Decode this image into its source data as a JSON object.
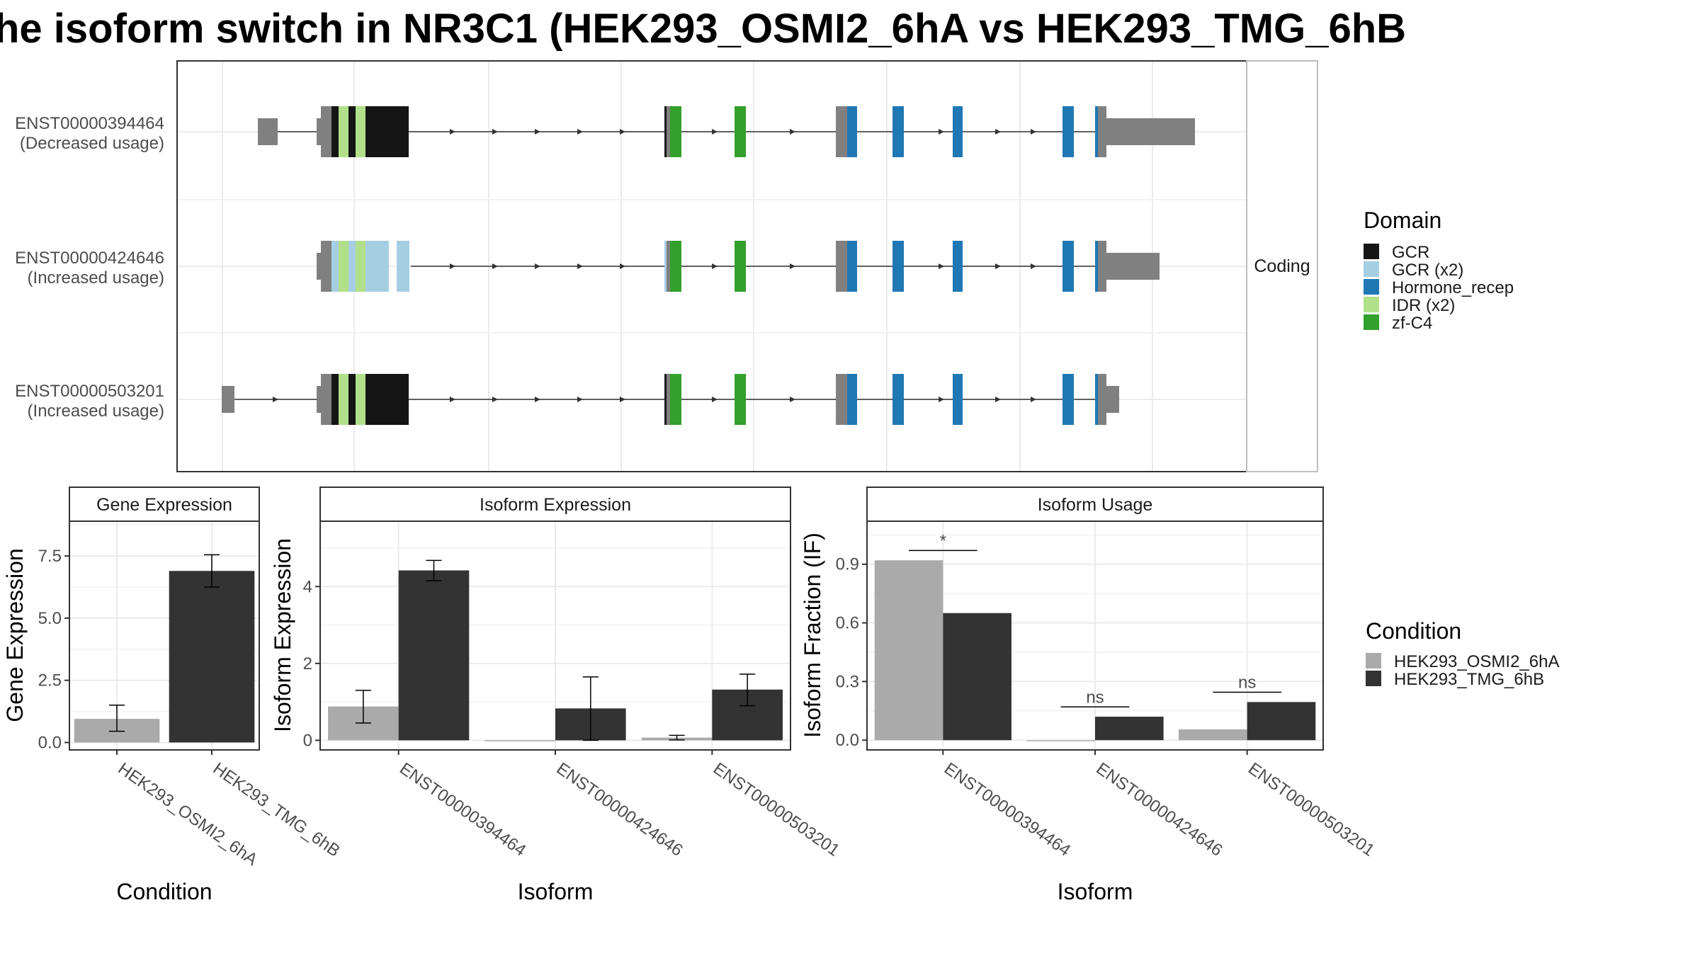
{
  "title": "he isoform switch in NR3C1 (HEK293_OSMI2_6hA vs HEK293_TMG_6hB",
  "structure_panel": {
    "facet_label": "Coding",
    "isoforms": [
      {
        "id": "ENST00000394464",
        "note": "(Decreased usage)"
      },
      {
        "id": "ENST00000424646",
        "note": "(Increased usage)"
      },
      {
        "id": "ENST00000503201",
        "note": "(Increased usage)"
      }
    ]
  },
  "domain_legend": {
    "title": "Domain",
    "items": [
      {
        "label": "GCR",
        "color": "#151515"
      },
      {
        "label": "GCR (x2)",
        "color": "#a6cee3"
      },
      {
        "label": "Hormone_recep",
        "color": "#1f78b4"
      },
      {
        "label": "IDR (x2)",
        "color": "#b2df8a"
      },
      {
        "label": "zf-C4",
        "color": "#33a02c"
      }
    ]
  },
  "condition_legend": {
    "title": "Condition",
    "items": [
      {
        "label": "HEK293_OSMI2_6hA",
        "color": "#aaaaaa"
      },
      {
        "label": "HEK293_TMG_6hB",
        "color": "#333333"
      }
    ]
  },
  "chart_data": [
    {
      "type": "bar",
      "title": "Gene Expression",
      "xlabel": "Condition",
      "ylabel": "Gene Expression",
      "categories": [
        "HEK293_OSMI2_6hA",
        "HEK293_TMG_6hB"
      ],
      "values": [
        0.95,
        6.9
      ],
      "error_low": [
        0.45,
        6.25
      ],
      "error_high": [
        1.5,
        7.55
      ],
      "colors": [
        "#aaaaaa",
        "#333333"
      ],
      "ylim": [
        -0.3,
        8.9
      ],
      "yticks": [
        0.0,
        2.5,
        5.0,
        7.5
      ],
      "yticklabels": [
        "0.0",
        "2.5",
        "5.0",
        "7.5"
      ]
    },
    {
      "type": "bar",
      "title": "Isoform Expression",
      "xlabel": "Isoform",
      "ylabel": "Isoform Expression",
      "categories": [
        "ENST00000394464",
        "ENST00000424646",
        "ENST00000503201"
      ],
      "series": [
        {
          "name": "HEK293_OSMI2_6hA",
          "values": [
            0.88,
            0.0,
            0.07
          ],
          "error_low": [
            0.45,
            0.0,
            0.01
          ],
          "error_high": [
            1.3,
            0.0,
            0.13
          ]
        },
        {
          "name": "HEK293_TMG_6hB",
          "values": [
            4.42,
            0.83,
            1.32
          ],
          "error_low": [
            4.15,
            0.0,
            0.9
          ],
          "error_high": [
            4.68,
            1.65,
            1.72
          ]
        }
      ],
      "ylim": [
        -0.25,
        5.7
      ],
      "yticks": [
        0,
        2,
        4
      ],
      "yticklabels": [
        "0",
        "2",
        "4"
      ]
    },
    {
      "type": "bar",
      "title": "Isoform Usage",
      "xlabel": "Isoform",
      "ylabel": "Isoform Fraction (IF)",
      "categories": [
        "ENST00000394464",
        "ENST00000424646",
        "ENST00000503201"
      ],
      "series": [
        {
          "name": "HEK293_OSMI2_6hA",
          "values": [
            0.92,
            0.0,
            0.055
          ]
        },
        {
          "name": "HEK293_TMG_6hB",
          "values": [
            0.65,
            0.12,
            0.195
          ]
        }
      ],
      "significance": [
        "*",
        "ns",
        "ns"
      ],
      "ylim": [
        -0.05,
        1.12
      ],
      "yticks": [
        0.0,
        0.3,
        0.6,
        0.9
      ],
      "yticklabels": [
        "0.0",
        "0.3",
        "0.6",
        "0.9"
      ]
    }
  ]
}
